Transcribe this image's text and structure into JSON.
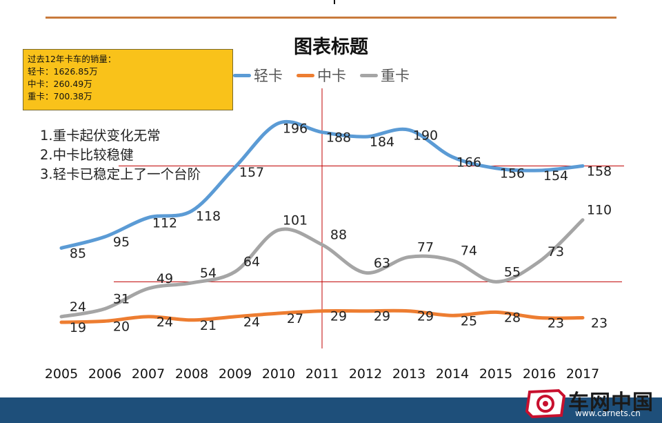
{
  "info_box": {
    "lines": [
      "过去12年卡车的销量：",
      "轻卡：1626.85万",
      "中卡：260.49万",
      "重卡：700.38万"
    ]
  },
  "notes": [
    "1.重卡起伏变化无常",
    "2.中卡比较稳健",
    "3.轻卡已稳定上了一个台阶"
  ],
  "logo": {
    "name": "车网中国",
    "url": "www.carnets.cn"
  },
  "colors": {
    "light": "#5b9bd5",
    "medium": "#ed7d31",
    "heavy": "#a5a5a5",
    "guide": "#c00000",
    "box": "#f9c21a",
    "footer": "#1e4f7a"
  },
  "chart_data": {
    "type": "line",
    "title": "图表标题",
    "categories": [
      "2005",
      "2006",
      "2007",
      "2008",
      "2009",
      "2010",
      "2011",
      "2012",
      "2013",
      "2014",
      "2015",
      "2016",
      "2017"
    ],
    "series": [
      {
        "name": "轻卡",
        "values": [
          85,
          95,
          112,
          118,
          157,
          196,
          188,
          184,
          190,
          166,
          156,
          154,
          158
        ]
      },
      {
        "name": "中卡",
        "values": [
          19,
          20,
          24,
          21,
          24,
          27,
          29,
          29,
          29,
          25,
          28,
          23,
          23
        ]
      },
      {
        "name": "重卡",
        "values": [
          24,
          31,
          49,
          54,
          64,
          101,
          88,
          63,
          77,
          74,
          55,
          73,
          110
        ]
      }
    ],
    "legend_position": "top",
    "grid": false,
    "ylim": [
      0,
      230
    ],
    "annotations": {
      "reference_lines_y": [
        158,
        55
      ],
      "reference_line_x": "2011"
    }
  }
}
